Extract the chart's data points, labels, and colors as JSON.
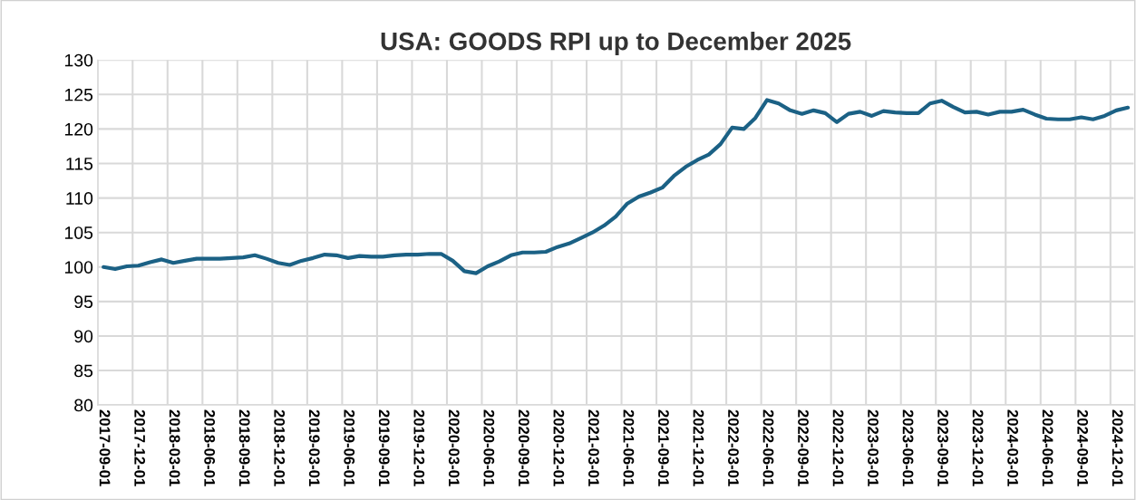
{
  "chart_data": {
    "type": "line",
    "title": "USA: GOODS RPI up to December 2025",
    "categories": [
      "2017-09-01",
      null,
      null,
      "2017-12-01",
      null,
      null,
      "2018-03-01",
      null,
      null,
      "2018-06-01",
      null,
      null,
      "2018-09-01",
      null,
      null,
      "2018-12-01",
      null,
      null,
      "2019-03-01",
      null,
      null,
      "2019-06-01",
      null,
      null,
      "2019-09-01",
      null,
      null,
      "2019-12-01",
      null,
      null,
      "2020-03-01",
      null,
      null,
      "2020-06-01",
      null,
      null,
      "2020-09-01",
      null,
      null,
      "2020-12-01",
      null,
      null,
      "2021-03-01",
      null,
      null,
      "2021-06-01",
      null,
      null,
      "2021-09-01",
      null,
      null,
      "2021-12-01",
      null,
      null,
      "2022-03-01",
      null,
      null,
      "2022-06-01",
      null,
      null,
      "2022-09-01",
      null,
      null,
      "2022-12-01",
      null,
      null,
      "2023-03-01",
      null,
      null,
      "2023-06-01",
      null,
      null,
      "2023-09-01",
      null,
      null,
      "2023-12-01",
      null,
      null,
      "2024-03-01",
      null,
      null,
      "2024-06-01",
      null,
      null,
      "2024-09-01",
      null,
      null,
      "2024-12-01",
      null
    ],
    "series": [
      {
        "color": "#1b6185",
        "values": [
          100.0,
          99.7,
          100.1,
          100.2,
          100.7,
          101.1,
          100.6,
          100.9,
          101.2,
          101.2,
          101.2,
          101.3,
          101.4,
          101.7,
          101.2,
          100.6,
          100.3,
          100.9,
          101.3,
          101.8,
          101.7,
          101.3,
          101.6,
          101.5,
          101.5,
          101.7,
          101.8,
          101.8,
          101.9,
          101.9,
          100.9,
          99.4,
          99.1,
          100.1,
          100.8,
          101.7,
          102.1,
          102.1,
          102.2,
          102.9,
          103.4,
          104.2,
          105.0,
          106.0,
          107.3,
          109.2,
          110.2,
          110.8,
          111.5,
          113.2,
          114.5,
          115.5,
          116.3,
          117.8,
          120.2,
          120.0,
          121.6,
          124.2,
          123.7,
          122.7,
          122.2,
          122.7,
          122.3,
          121.0,
          122.2,
          122.5,
          121.9,
          122.6,
          122.4,
          122.3,
          122.3,
          123.7,
          124.1,
          123.2,
          122.4,
          122.5,
          122.1,
          122.5,
          122.5,
          122.8,
          122.1,
          121.5,
          121.4,
          121.4,
          121.7,
          121.4,
          121.9,
          122.7,
          123.1
        ]
      }
    ],
    "ylim": [
      80,
      130
    ],
    "yticks": [
      80,
      85,
      90,
      95,
      100,
      105,
      110,
      115,
      120,
      125,
      130
    ],
    "grid": true,
    "marker": "none",
    "line_style": "solid"
  }
}
